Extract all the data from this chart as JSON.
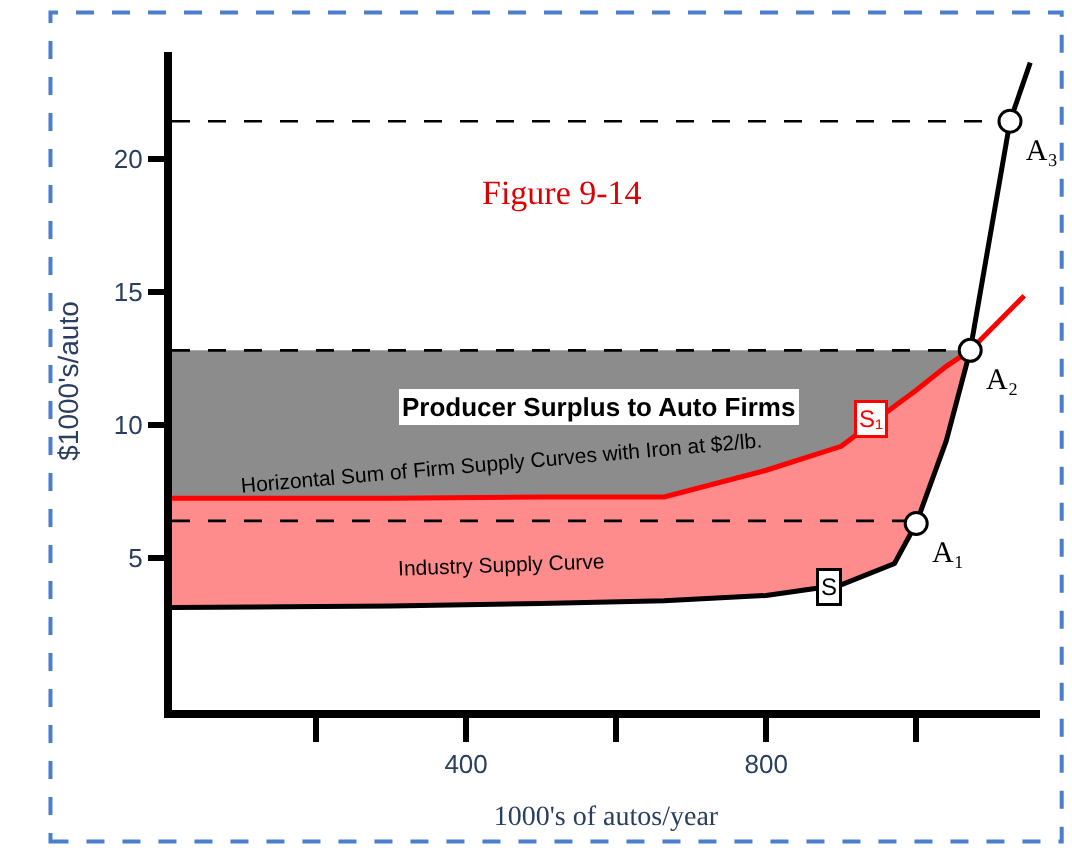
{
  "chart_data": {
    "type": "line",
    "xlabel": "1000's of autos/year",
    "ylabel": "$1000's/auto",
    "xlim": [
      8,
      1165
    ],
    "ylim": [
      -0.7,
      24
    ],
    "xticks": [
      {
        "value": 200,
        "label": null
      },
      400,
      {
        "value": 600,
        "label": null
      },
      800,
      {
        "value": 1000,
        "label": null
      }
    ],
    "yticks": [
      5,
      10,
      15,
      20
    ],
    "series": [
      {
        "color": "#000000",
        "line_style": "dashed",
        "x": [
          8,
          1125
        ],
        "values": [
          21.4,
          21.4
        ]
      },
      {
        "color": "#000000",
        "line_style": "dashed",
        "x": [
          8,
          300,
          500,
          664,
          800,
          900,
          971,
          1000,
          1040,
          1072
        ],
        "values": [
          12.8,
          12.8,
          12.8,
          12.8,
          12.8,
          12.8,
          12.8,
          12.8,
          12.8,
          12.8
        ],
        "lower": [
          7.25,
          7.25,
          7.3,
          7.3,
          8.3,
          9.2,
          10.7,
          11.3,
          12.2,
          12.8
        ],
        "upper": [
          12.8,
          12.8,
          12.8,
          12.8,
          12.8,
          12.8,
          12.8,
          12.8,
          12.8,
          12.8
        ]
      },
      {
        "color": "#000000",
        "line_style": "dashed",
        "x": [
          8,
          1000
        ],
        "values": [
          6.4,
          6.4
        ]
      },
      {
        "color": "#ff0000",
        "line_style": "solid",
        "x": [
          8,
          300,
          500,
          664,
          800,
          900,
          971,
          1000,
          1040,
          1072,
          1144
        ],
        "values": [
          7.25,
          7.25,
          7.3,
          7.3,
          8.3,
          9.2,
          10.7,
          11.3,
          12.2,
          12.8,
          14.85
        ],
        "lower": [
          3.15,
          3.2,
          3.3,
          3.4,
          3.6,
          4.0,
          4.8,
          6.3,
          9.4,
          12.8,
          null
        ],
        "upper": [
          7.25,
          7.25,
          7.3,
          7.3,
          8.3,
          9.2,
          10.7,
          11.3,
          12.2,
          12.8,
          null
        ]
      },
      {
        "color": "#000000",
        "line_style": "solid",
        "x": [
          8,
          300,
          500,
          664,
          800,
          900,
          971,
          1000,
          1040,
          1072,
          1125,
          1152
        ],
        "values": [
          3.15,
          3.2,
          3.3,
          3.4,
          3.6,
          4.0,
          4.8,
          6.3,
          9.4,
          12.8,
          21.4,
          23.6
        ]
      },
      {
        "type": "scatter",
        "color": "#000000",
        "marker": "circle",
        "x": [
          1000,
          1072,
          1125
        ],
        "values": [
          6.3,
          12.8,
          21.4
        ],
        "value_labels": [
          "A₁",
          "A₂",
          "A₃"
        ]
      }
    ],
    "annotations": [
      "Figure 9-14",
      "Producer Surplus to Auto Firms",
      "Horizontal Sum of Firm Supply Curves with Iron at $2/lb.",
      "Industry Supply Curve",
      {
        "text": "S",
        "x": 885,
        "y": 3.9
      },
      {
        "text": "S₁",
        "x": 940,
        "y": 10.2
      }
    ]
  }
}
